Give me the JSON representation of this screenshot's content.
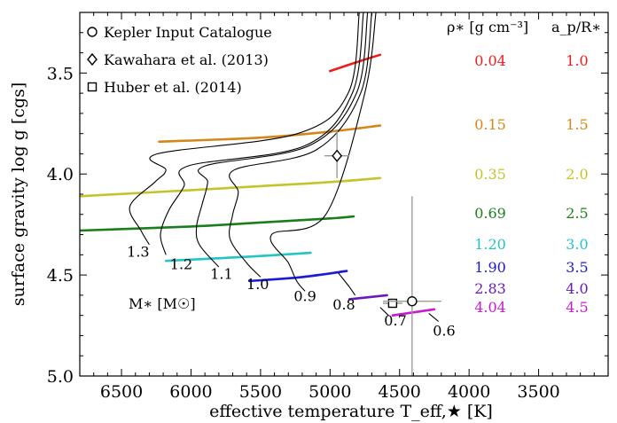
{
  "chart_data": {
    "type": "line",
    "xlabel": "effective temperature T_eff,★ [K]",
    "ylabel": "surface gravity log g [cgs]",
    "xlim": [
      6800,
      3000
    ],
    "ylim": [
      3.2,
      5.0
    ],
    "x_reversed": true,
    "y_reversed": true,
    "grid": false,
    "xticks": [
      6500,
      6000,
      5500,
      5000,
      4500,
      4000,
      3500
    ],
    "yticks": [
      3.5,
      4.0,
      4.5,
      5.0
    ],
    "xtick_labels": [
      "6500",
      "6000",
      "5500",
      "5000",
      "4500",
      "4000",
      "3500"
    ],
    "ytick_labels": [
      "3.5",
      "4.0",
      "4.5",
      "5.0"
    ],
    "legend": {
      "position": "top-left",
      "entries": [
        {
          "marker": "circle",
          "label": "Kepler Input Catalogue"
        },
        {
          "marker": "diamond",
          "label": "Kawahara et al. (2013)"
        },
        {
          "marker": "square",
          "label": "Huber et al. (2014)"
        }
      ]
    },
    "table": {
      "header_rho": "ρ∗ [g cm⁻³]",
      "header_ratio": "a_p/R∗",
      "rows": [
        {
          "rho": "0.04",
          "ratio": "1.0",
          "color": "#ee1c1c"
        },
        {
          "rho": "0.15",
          "ratio": "1.5",
          "color": "#d4861a"
        },
        {
          "rho": "0.35",
          "ratio": "2.0",
          "color": "#c4c42a"
        },
        {
          "rho": "0.69",
          "ratio": "2.5",
          "color": "#1a7f1a"
        },
        {
          "rho": "1.20",
          "ratio": "3.0",
          "color": "#22c4c4"
        },
        {
          "rho": "1.90",
          "ratio": "3.5",
          "color": "#1a1ad8"
        },
        {
          "rho": "2.83",
          "ratio": "4.0",
          "color": "#6a1ab8"
        },
        {
          "rho": "4.04",
          "ratio": "4.5",
          "color": "#c81ad0"
        }
      ]
    },
    "density_lines": [
      {
        "label": "0.04",
        "color": "#ee1c1c",
        "points": [
          [
            5000,
            3.49
          ],
          [
            4780,
            3.44
          ],
          [
            4640,
            3.41
          ]
        ]
      },
      {
        "label": "0.15",
        "color": "#d4861a",
        "points": [
          [
            6230,
            3.84
          ],
          [
            5500,
            3.82
          ],
          [
            5000,
            3.79
          ],
          [
            4640,
            3.76
          ]
        ]
      },
      {
        "label": "0.35",
        "color": "#c4c42a",
        "points": [
          [
            6800,
            4.11
          ],
          [
            6000,
            4.08
          ],
          [
            5500,
            4.06
          ],
          [
            5000,
            4.04
          ],
          [
            4640,
            4.02
          ]
        ]
      },
      {
        "label": "0.69",
        "color": "#1a7f1a",
        "points": [
          [
            6800,
            4.28
          ],
          [
            6000,
            4.26
          ],
          [
            5500,
            4.24
          ],
          [
            5000,
            4.22
          ],
          [
            4830,
            4.21
          ]
        ]
      },
      {
        "label": "1.20",
        "color": "#22c4c4",
        "points": [
          [
            6180,
            4.43
          ],
          [
            5600,
            4.41
          ],
          [
            5140,
            4.39
          ]
        ]
      },
      {
        "label": "1.90",
        "color": "#1a1ad8",
        "points": [
          [
            5580,
            4.53
          ],
          [
            5200,
            4.51
          ],
          [
            4880,
            4.48
          ]
        ]
      },
      {
        "label": "2.83",
        "color": "#6a1ab8",
        "points": [
          [
            4860,
            4.62
          ],
          [
            4590,
            4.6
          ]
        ]
      },
      {
        "label": "4.04",
        "color": "#c81ad0",
        "points": [
          [
            4550,
            4.7
          ],
          [
            4250,
            4.67
          ]
        ]
      }
    ],
    "mass_tracks": [
      {
        "label": "1.3",
        "label_at": [
          6380,
          4.41
        ],
        "points": [
          [
            6240,
            3.9
          ],
          [
            6180,
            3.98
          ],
          [
            6260,
            4.04
          ],
          [
            6440,
            4.16
          ],
          [
            6360,
            4.28
          ],
          [
            6300,
            4.35
          ]
        ]
      },
      {
        "label": "1.2",
        "label_at": [
          6070,
          4.47
        ],
        "points": [
          [
            6020,
            3.96
          ],
          [
            6050,
            4.06
          ],
          [
            6160,
            4.18
          ],
          [
            6220,
            4.3
          ],
          [
            6180,
            4.4
          ]
        ]
      },
      {
        "label": "1.1",
        "label_at": [
          5780,
          4.52
        ],
        "points": [
          [
            5900,
            3.96
          ],
          [
            5880,
            4.04
          ],
          [
            5920,
            4.15
          ],
          [
            5960,
            4.26
          ],
          [
            5940,
            4.35
          ],
          [
            5800,
            4.46
          ]
        ]
      },
      {
        "label": "1.0",
        "label_at": [
          5520,
          4.57
        ],
        "points": [
          [
            5690,
            3.98
          ],
          [
            5660,
            4.09
          ],
          [
            5700,
            4.2
          ],
          [
            5720,
            4.32
          ],
          [
            5600,
            4.44
          ],
          [
            5500,
            4.51
          ]
        ]
      },
      {
        "label": "0.9",
        "label_at": [
          5180,
          4.63
        ],
        "points": [
          [
            5420,
            4.3
          ],
          [
            5300,
            4.44
          ],
          [
            5240,
            4.53
          ],
          [
            5180,
            4.58
          ]
        ]
      },
      {
        "label": "0.8",
        "label_at": [
          4900,
          4.67
        ],
        "points": [
          [
            4940,
            4.49
          ],
          [
            4860,
            4.56
          ],
          [
            4820,
            4.6
          ]
        ]
      },
      {
        "label": "0.7",
        "label_at": [
          4530,
          4.75
        ],
        "points": [
          [
            4640,
            4.66
          ],
          [
            4580,
            4.7
          ]
        ]
      },
      {
        "label": "0.6",
        "label_at": [
          4180,
          4.8
        ],
        "points": [
          [
            4290,
            4.69
          ],
          [
            4220,
            4.73
          ]
        ]
      }
    ],
    "mass_axis_label": "M∗ [M☉]",
    "observations": [
      {
        "marker": "diamond",
        "x": 4950,
        "y": 3.91,
        "xerr": 90,
        "yerr": [
          0.13,
          0.11
        ]
      },
      {
        "marker": "square",
        "x": 4550,
        "y": 4.64,
        "xerr": 70,
        "yerr": [
          0.01,
          0.01
        ]
      },
      {
        "marker": "circle",
        "x": 4410,
        "y": 4.63,
        "xerr": 210,
        "yerr": [
          0.52,
          0.5
        ]
      }
    ]
  }
}
